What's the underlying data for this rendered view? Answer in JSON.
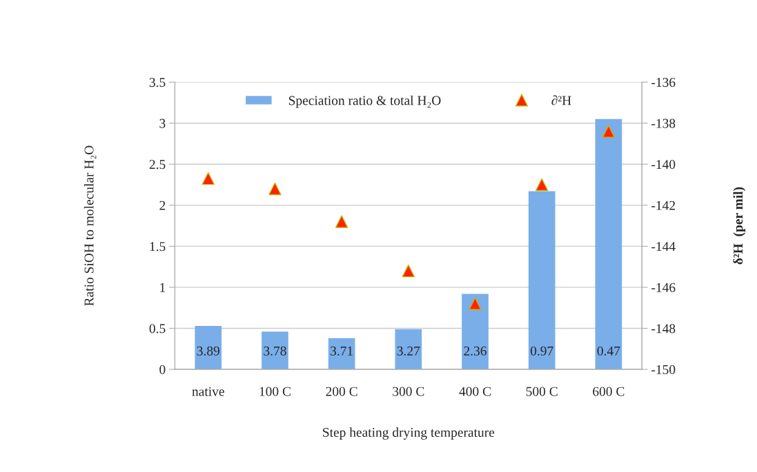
{
  "chart_data": {
    "type": "bar",
    "xlabel": "Step heating drying temperature",
    "ylabel": "Ratio SiOH to molecular H₂O",
    "y2label": "δ²H  (per mil)",
    "categories": [
      "native",
      "100 C",
      "200 C",
      "300 C",
      "400 C",
      "500 C",
      "600 C"
    ],
    "series": [
      {
        "name": "Speciation ratio & total H₂O",
        "type": "bar",
        "color": "#79aee8",
        "values": [
          0.53,
          0.46,
          0.38,
          0.49,
          0.92,
          2.17,
          3.05
        ]
      },
      {
        "name": "∂²H",
        "type": "scatter",
        "axis": "y2",
        "marker": "triangle",
        "color": "#ff2200",
        "values": [
          -140.7,
          -141.2,
          -142.8,
          -145.2,
          -146.8,
          -141.0,
          -138.4
        ]
      }
    ],
    "ylim": [
      0,
      3.5
    ],
    "yticks": [
      0,
      0.5,
      1,
      1.5,
      2,
      2.5,
      3,
      3.5
    ],
    "y2lim": [
      -150,
      -136
    ],
    "y2ticks": [
      -150,
      -148,
      -146,
      -144,
      -142,
      -140,
      -138,
      -136
    ],
    "annotations": [
      "3.89",
      "3.78",
      "3.71",
      "3.27",
      "2.36",
      "0.97",
      "0.47"
    ],
    "grid": "y",
    "legend": "top"
  }
}
